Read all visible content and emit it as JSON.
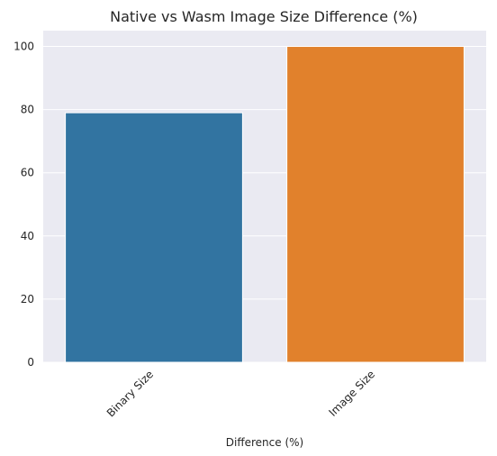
{
  "chart_data": {
    "type": "bar",
    "title": "Native vs Wasm Image Size Difference (%)",
    "xlabel": "Difference (%)",
    "ylabel": "",
    "categories": [
      "Binary Size",
      "Image Size"
    ],
    "values": [
      79,
      100
    ],
    "ylim": [
      0,
      105
    ],
    "yticks": [
      0,
      20,
      40,
      60,
      80,
      100
    ],
    "grid": true,
    "colors": [
      "#3274a1",
      "#e1812c"
    ],
    "background": "#eaeaf2"
  }
}
